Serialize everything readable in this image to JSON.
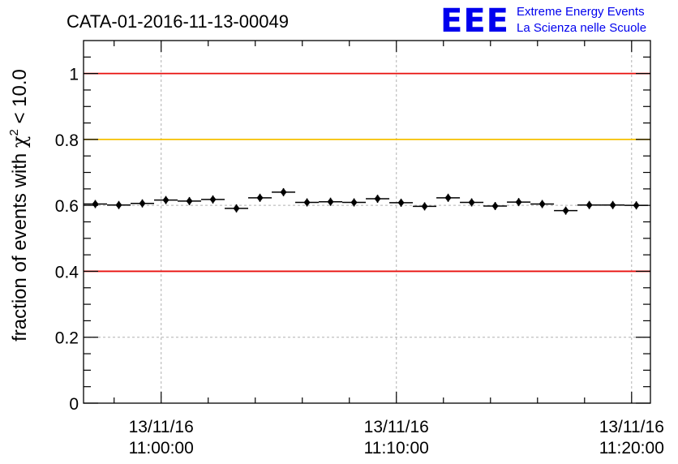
{
  "chart_data": {
    "type": "scatter",
    "title": "CATA-01-2016-11-13-00049",
    "ylabel": "fraction of events with χ² < 10.0",
    "ylabel_main": "fraction of events with ",
    "ylabel_chi": "χ",
    "ylabel_sup": "2",
    "ylabel_tail": " < 10.0",
    "xlabel": "",
    "ylim": [
      0,
      1.1
    ],
    "xlim_minutes": [
      -3.3,
      20.8
    ],
    "y_ticks": [
      {
        "value": 0,
        "label": "0"
      },
      {
        "value": 0.2,
        "label": "0.2"
      },
      {
        "value": 0.4,
        "label": "0.4"
      },
      {
        "value": 0.6,
        "label": "0.6"
      },
      {
        "value": 0.8,
        "label": "0.8"
      },
      {
        "value": 1,
        "label": "1"
      }
    ],
    "x_ticks": [
      {
        "minute": 0,
        "date": "13/11/16",
        "time": "11:00:00"
      },
      {
        "minute": 10,
        "date": "13/11/16",
        "time": "11:10:00"
      },
      {
        "minute": 20,
        "date": "13/11/16",
        "time": "11:20:00"
      }
    ],
    "reference_lines": [
      {
        "value": 1.0,
        "color": "#e8100e"
      },
      {
        "value": 0.8,
        "color": "#f5c000"
      },
      {
        "value": 0.4,
        "color": "#e8100e"
      }
    ],
    "bin_width_minutes": 1,
    "points": [
      {
        "x": -2.8,
        "y": 0.604
      },
      {
        "x": -1.8,
        "y": 0.601
      },
      {
        "x": -0.8,
        "y": 0.606
      },
      {
        "x": 0.2,
        "y": 0.616
      },
      {
        "x": 1.2,
        "y": 0.613
      },
      {
        "x": 2.2,
        "y": 0.618
      },
      {
        "x": 3.2,
        "y": 0.591
      },
      {
        "x": 4.2,
        "y": 0.623
      },
      {
        "x": 5.2,
        "y": 0.64
      },
      {
        "x": 6.2,
        "y": 0.609
      },
      {
        "x": 7.2,
        "y": 0.611
      },
      {
        "x": 8.2,
        "y": 0.609
      },
      {
        "x": 9.2,
        "y": 0.62
      },
      {
        "x": 10.2,
        "y": 0.608
      },
      {
        "x": 11.2,
        "y": 0.597
      },
      {
        "x": 12.2,
        "y": 0.623
      },
      {
        "x": 13.2,
        "y": 0.609
      },
      {
        "x": 14.2,
        "y": 0.598
      },
      {
        "x": 15.2,
        "y": 0.61
      },
      {
        "x": 16.2,
        "y": 0.604
      },
      {
        "x": 17.2,
        "y": 0.584
      },
      {
        "x": 18.2,
        "y": 0.601
      },
      {
        "x": 19.2,
        "y": 0.601
      },
      {
        "x": 20.2,
        "y": 0.6
      }
    ],
    "grid": true,
    "marker_color": "#000000"
  },
  "logo": {
    "big": "EEE",
    "line1": "Extreme Energy Events",
    "line2": "La Scienza nelle Scuole",
    "color": "#0000ee"
  }
}
